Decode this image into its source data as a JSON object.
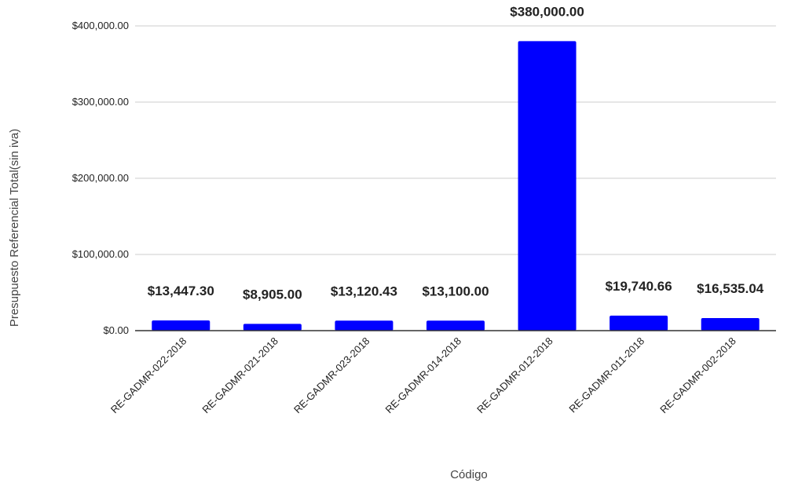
{
  "chart_data": {
    "type": "bar",
    "title": "",
    "xlabel": "Código",
    "ylabel": "Presupuesto Referencial Total(sin iva)",
    "categories": [
      "RE-GADMR-022-2018",
      "RE-GADMR-021-2018",
      "RE-GADMR-023-2018",
      "RE-GADMR-014-2018",
      "RE-GADMR-012-2018",
      "RE-GADMR-011-2018",
      "RE-GADMR-002-2018"
    ],
    "values": [
      13447.3,
      8905.0,
      13120.43,
      13100.0,
      380000.0,
      19740.66,
      16535.04
    ],
    "data_labels": [
      "$13,447.30",
      "$8,905.00",
      "$13,120.43",
      "$13,100.00",
      "$380,000.00",
      "$19,740.66",
      "$16,535.04"
    ],
    "ylim": [
      0,
      400000
    ],
    "yticks": [
      0,
      100000,
      200000,
      300000,
      400000
    ],
    "ytick_labels": [
      "$0.00",
      "$100,000.00",
      "$200,000.00",
      "$300,000.00",
      "$400,000.00"
    ],
    "grid": true,
    "legend": "none",
    "bar_color": "#0000ff",
    "grid_color": "#cccccc",
    "axis_color": "#333333"
  }
}
